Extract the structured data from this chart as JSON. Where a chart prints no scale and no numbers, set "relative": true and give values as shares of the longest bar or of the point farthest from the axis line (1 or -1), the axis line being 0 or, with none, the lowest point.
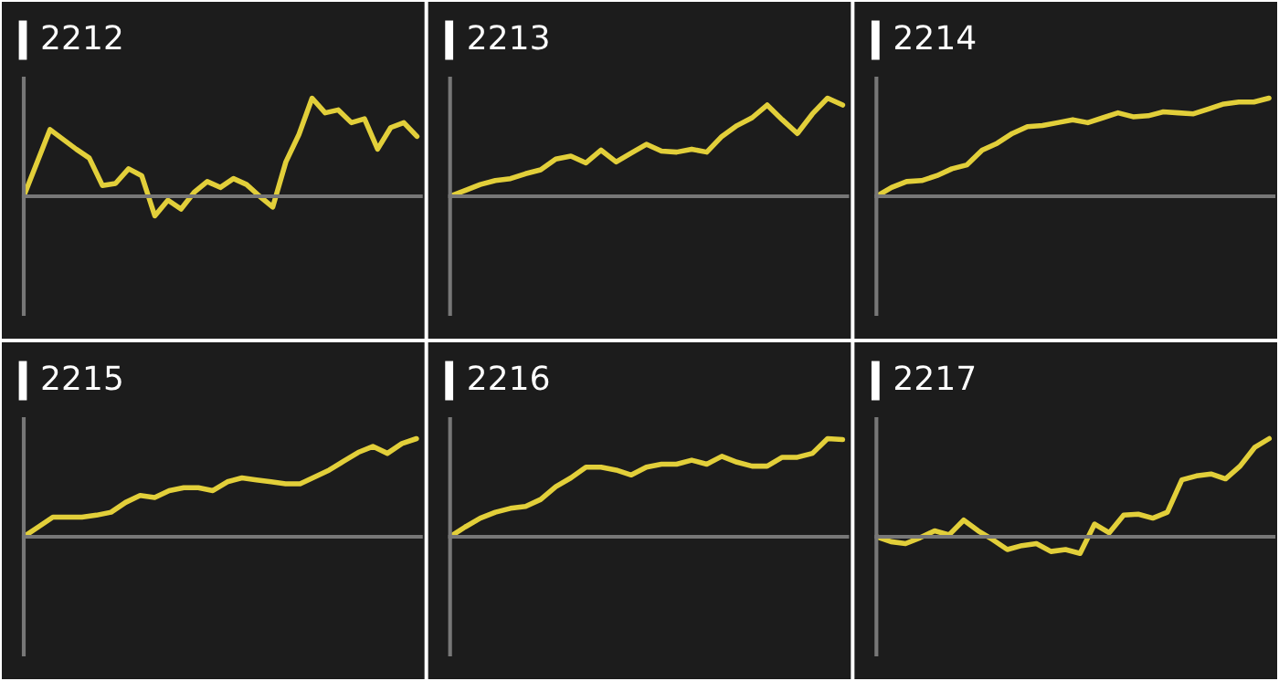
{
  "chart_data": [
    {
      "type": "line",
      "title": "2212",
      "relative": true,
      "categories": [
        null,
        null,
        null,
        null,
        null,
        null,
        null,
        null,
        null,
        null,
        null,
        null,
        null,
        null,
        null,
        null,
        null,
        null,
        null,
        null,
        null,
        null,
        null,
        null,
        null,
        null,
        null,
        null,
        null,
        null,
        null
      ],
      "series": [
        {
          "color": "#e2cf3a",
          "values": [
            0,
            0.34,
            0.68,
            0.58,
            0.48,
            0.39,
            0.11,
            0.13,
            0.28,
            0.21,
            -0.2,
            -0.04,
            -0.13,
            0.04,
            0.15,
            0.09,
            0.18,
            0.12,
            0,
            -0.11,
            0.35,
            0.63,
            1,
            0.85,
            0.88,
            0.75,
            0.79,
            0.48,
            0.7,
            0.75,
            0.61
          ]
        }
      ]
    },
    {
      "type": "line",
      "title": "2213",
      "relative": true,
      "categories": [
        null,
        null,
        null,
        null,
        null,
        null,
        null,
        null,
        null,
        null,
        null,
        null,
        null,
        null,
        null,
        null,
        null,
        null,
        null,
        null,
        null,
        null,
        null,
        null,
        null,
        null,
        null
      ],
      "series": [
        {
          "color": "#e2cf3a",
          "values": [
            0,
            0.06,
            0.12,
            0.16,
            0.18,
            0.23,
            0.27,
            0.38,
            0.41,
            0.34,
            0.47,
            0.35,
            0.44,
            0.53,
            0.46,
            0.45,
            0.48,
            0.45,
            0.61,
            0.72,
            0.8,
            0.93,
            0.78,
            0.64,
            0.84,
            1,
            0.93
          ]
        }
      ]
    },
    {
      "type": "line",
      "title": "2214",
      "relative": true,
      "categories": [
        null,
        null,
        null,
        null,
        null,
        null,
        null,
        null,
        null,
        null,
        null,
        null,
        null,
        null,
        null,
        null,
        null,
        null,
        null,
        null,
        null,
        null,
        null,
        null,
        null,
        null,
        null
      ],
      "series": [
        {
          "color": "#e2cf3a",
          "values": [
            0,
            0.09,
            0.15,
            0.16,
            0.21,
            0.28,
            0.32,
            0.47,
            0.54,
            0.64,
            0.71,
            0.72,
            0.75,
            0.78,
            0.75,
            0.8,
            0.85,
            0.81,
            0.82,
            0.86,
            0.85,
            0.84,
            0.89,
            0.94,
            0.96,
            0.96,
            1
          ]
        }
      ]
    },
    {
      "type": "line",
      "title": "2215",
      "relative": true,
      "categories": [
        null,
        null,
        null,
        null,
        null,
        null,
        null,
        null,
        null,
        null,
        null,
        null,
        null,
        null,
        null,
        null,
        null,
        null,
        null,
        null,
        null,
        null,
        null,
        null,
        null,
        null,
        null,
        null
      ],
      "series": [
        {
          "color": "#e2cf3a",
          "values": [
            0,
            0.1,
            0.2,
            0.2,
            0.2,
            0.22,
            0.25,
            0.35,
            0.42,
            0.4,
            0.47,
            0.5,
            0.5,
            0.47,
            0.56,
            0.6,
            0.58,
            0.56,
            0.54,
            0.54,
            0.61,
            0.68,
            0.77,
            0.86,
            0.92,
            0.85,
            0.95,
            1
          ]
        }
      ]
    },
    {
      "type": "line",
      "title": "2216",
      "relative": true,
      "categories": [
        null,
        null,
        null,
        null,
        null,
        null,
        null,
        null,
        null,
        null,
        null,
        null,
        null,
        null,
        null,
        null,
        null,
        null,
        null,
        null,
        null,
        null,
        null,
        null,
        null,
        null,
        null
      ],
      "series": [
        {
          "color": "#e2cf3a",
          "values": [
            0,
            0.1,
            0.19,
            0.25,
            0.29,
            0.31,
            0.38,
            0.51,
            0.6,
            0.71,
            0.71,
            0.68,
            0.63,
            0.71,
            0.74,
            0.74,
            0.78,
            0.74,
            0.82,
            0.76,
            0.72,
            0.72,
            0.81,
            0.81,
            0.85,
            1,
            0.99
          ]
        }
      ]
    },
    {
      "type": "line",
      "title": "2217",
      "relative": true,
      "categories": [
        null,
        null,
        null,
        null,
        null,
        null,
        null,
        null,
        null,
        null,
        null,
        null,
        null,
        null,
        null,
        null,
        null,
        null,
        null,
        null,
        null,
        null,
        null,
        null,
        null,
        null,
        null,
        null
      ],
      "series": [
        {
          "color": "#e2cf3a",
          "values": [
            0,
            -0.05,
            -0.07,
            -0.01,
            0.06,
            0.02,
            0.17,
            0.06,
            -0.03,
            -0.13,
            -0.09,
            -0.07,
            -0.15,
            -0.13,
            -0.17,
            0.13,
            0.04,
            0.22,
            0.23,
            0.19,
            0.25,
            0.58,
            0.62,
            0.64,
            0.59,
            0.72,
            0.91,
            1
          ]
        }
      ]
    }
  ]
}
